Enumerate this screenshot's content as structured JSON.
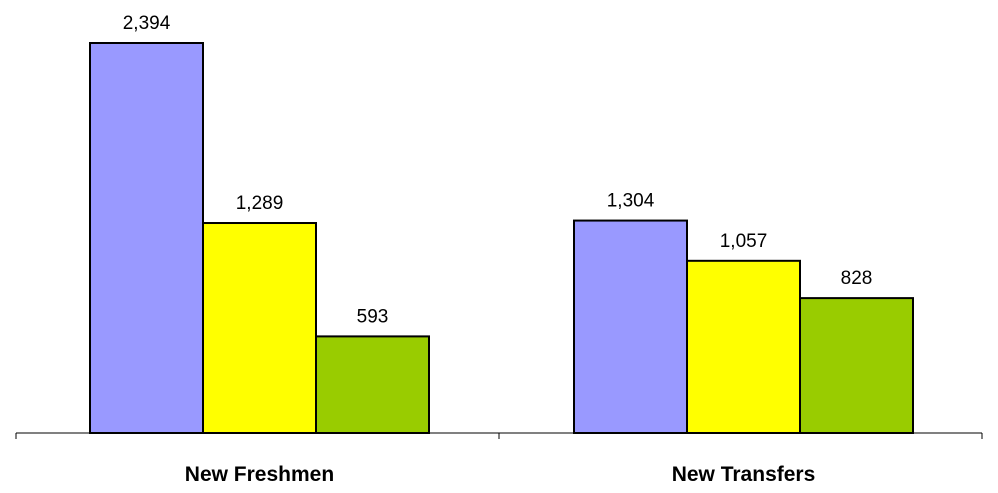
{
  "chart_data": {
    "type": "bar",
    "categories": [
      "New Freshmen",
      "New Transfers"
    ],
    "series": [
      {
        "values": [
          2394,
          1304
        ],
        "color": "#9999FF"
      },
      {
        "values": [
          1289,
          1057
        ],
        "color": "#FFFF00"
      },
      {
        "values": [
          593,
          828
        ],
        "color": "#99CC00"
      }
    ],
    "value_labels": [
      [
        "2,394",
        "1,304"
      ],
      [
        "1,289",
        "1,057"
      ],
      [
        "593",
        "828"
      ]
    ],
    "ylim": [
      0,
      2394
    ],
    "grid": false,
    "legend": "none",
    "title": "",
    "xlabel": "",
    "ylabel": ""
  }
}
